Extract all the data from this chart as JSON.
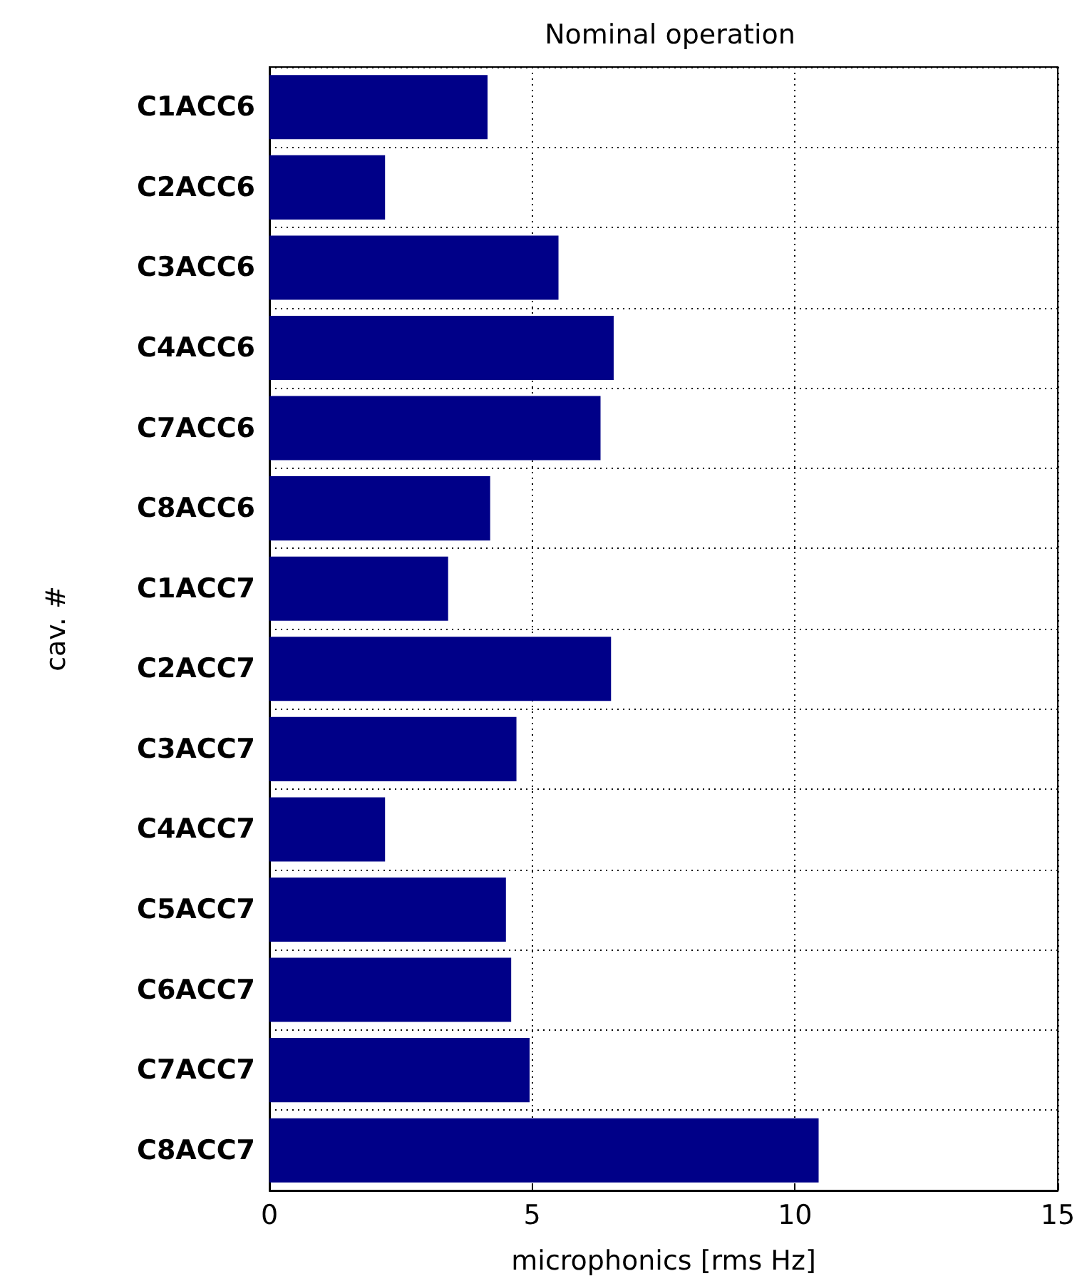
{
  "chart_data": {
    "type": "bar",
    "orientation": "horizontal",
    "title": "Nominal operation",
    "xlabel": "microphonics [rms Hz]",
    "ylabel": "cav. #",
    "categories": [
      "C1ACC6",
      "C2ACC6",
      "C3ACC6",
      "C4ACC6",
      "C7ACC6",
      "C8ACC6",
      "C1ACC7",
      "C2ACC7",
      "C3ACC7",
      "C4ACC7",
      "C5ACC7",
      "C6ACC7",
      "C7ACC7",
      "C8ACC7"
    ],
    "values": [
      4.15,
      2.2,
      5.5,
      6.55,
      6.3,
      4.2,
      3.4,
      6.5,
      4.7,
      2.2,
      4.5,
      4.6,
      4.95,
      10.45
    ],
    "color": "#000088",
    "xlim": [
      0,
      15
    ],
    "xticks": [
      0,
      5,
      10,
      15
    ],
    "grid": true
  }
}
